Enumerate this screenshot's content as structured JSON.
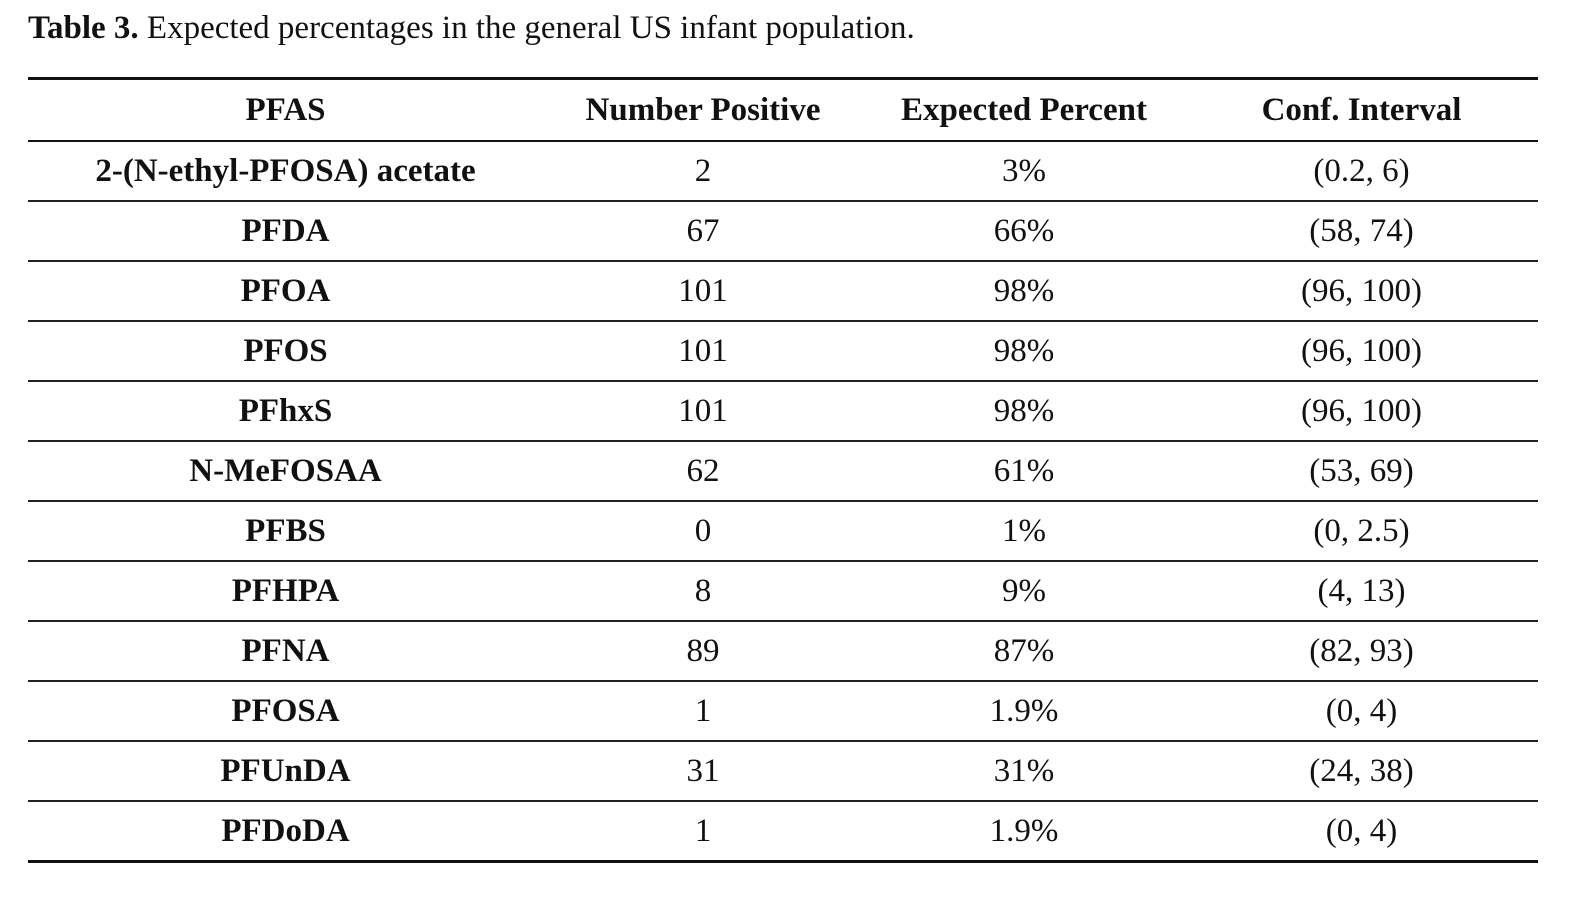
{
  "caption": {
    "label": "Table 3.",
    "text": " Expected percentages in the general US infant population."
  },
  "table": {
    "columns": [
      "PFAS",
      "Number Positive",
      "Expected Percent",
      "Conf. Interval"
    ],
    "rows": [
      [
        "2-(N-ethyl-PFOSA) acetate",
        "2",
        "3%",
        "(0.2, 6)"
      ],
      [
        "PFDA",
        "67",
        "66%",
        "(58, 74)"
      ],
      [
        "PFOA",
        "101",
        "98%",
        "(96, 100)"
      ],
      [
        "PFOS",
        "101",
        "98%",
        "(96, 100)"
      ],
      [
        "PFhxS",
        "101",
        "98%",
        "(96, 100)"
      ],
      [
        "N-MeFOSAA",
        "62",
        "61%",
        "(53, 69)"
      ],
      [
        "PFBS",
        "0",
        "1%",
        "(0, 2.5)"
      ],
      [
        "PFHPA",
        "8",
        "9%",
        "(4, 13)"
      ],
      [
        "PFNA",
        "89",
        "87%",
        "(82, 93)"
      ],
      [
        "PFOSA",
        "1",
        "1.9%",
        "(0, 4)"
      ],
      [
        "PFUnDA",
        "31",
        "31%",
        "(24, 38)"
      ],
      [
        "PFDoDA",
        "1",
        "1.9%",
        "(0, 4)"
      ]
    ]
  }
}
